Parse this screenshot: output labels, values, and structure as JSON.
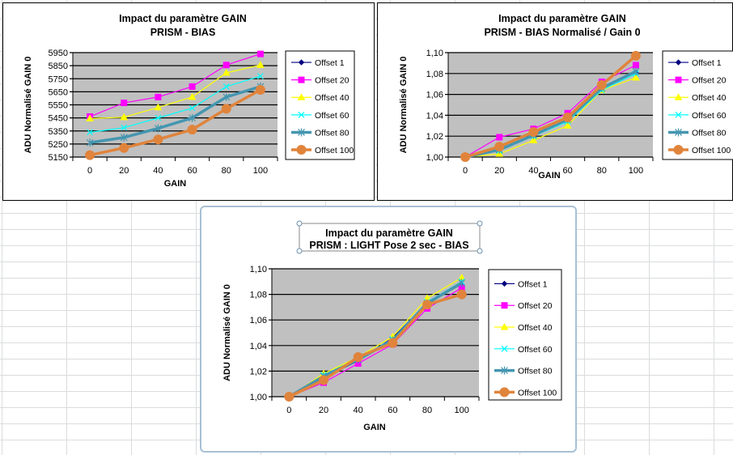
{
  "colors": {
    "plot_bg": "#c0c0c0",
    "offset1": "#000080",
    "offset20": "#ff00ff",
    "offset40": "#ffff00",
    "offset60": "#00ffff",
    "offset80": "#4596b0",
    "offset100": "#e0843c"
  },
  "chart_data": [
    {
      "type": "line",
      "title": [
        "Impact du paramètre  GAIN",
        "PRISM - BIAS"
      ],
      "xlabel": "GAIN",
      "ylabel": "ADU Normalisé GAIN 0",
      "categories": [
        "0",
        "20",
        "40",
        "60",
        "80",
        "100"
      ],
      "ylim": [
        5150,
        5950
      ],
      "yticks": [
        "5150",
        "5250",
        "5350",
        "5450",
        "5550",
        "5650",
        "5750",
        "5850",
        "5950"
      ],
      "grid": true,
      "legend": "right",
      "series": [
        {
          "name": "Offset 1",
          "marker": "diamond",
          "values": [
            null,
            null,
            null,
            null,
            null,
            null
          ]
        },
        {
          "name": "Offset 20",
          "marker": "square",
          "values": [
            5460,
            5565,
            5610,
            5690,
            5855,
            5940
          ]
        },
        {
          "name": "Offset 40",
          "marker": "triangle",
          "values": [
            5445,
            5455,
            5530,
            5610,
            5795,
            5855
          ]
        },
        {
          "name": "Offset 60",
          "marker": "x",
          "values": [
            5340,
            5375,
            5450,
            5525,
            5690,
            5770
          ]
        },
        {
          "name": "Offset 80",
          "marker": "star",
          "values": [
            5260,
            5300,
            5370,
            5450,
            5610,
            5690
          ]
        },
        {
          "name": "Offset 100",
          "marker": "circle",
          "values": [
            5165,
            5220,
            5285,
            5360,
            5520,
            5665
          ]
        }
      ]
    },
    {
      "type": "line",
      "title": [
        "Impact du paramètre  GAIN",
        "PRISM - BIAS Normalisé / Gain 0"
      ],
      "xlabel": "GAIN",
      "ylabel": "ADU Normalisé GAIN 0",
      "categories": [
        "0",
        "20",
        "40",
        "60",
        "80",
        "100"
      ],
      "ylim": [
        1.0,
        1.1
      ],
      "yticks": [
        "1,00",
        "1,02",
        "1,04",
        "1,06",
        "1,08",
        "1,10"
      ],
      "grid": true,
      "legend": "right",
      "series": [
        {
          "name": "Offset 1",
          "marker": "diamond",
          "values": [
            1.0,
            1.007,
            1.021,
            1.036,
            1.066,
            1.081
          ]
        },
        {
          "name": "Offset 20",
          "marker": "square",
          "values": [
            1.0,
            1.019,
            1.027,
            1.042,
            1.072,
            1.088
          ]
        },
        {
          "name": "Offset 40",
          "marker": "triangle",
          "values": [
            1.0,
            1.003,
            1.016,
            1.03,
            1.064,
            1.076
          ]
        },
        {
          "name": "Offset 60",
          "marker": "x",
          "values": [
            1.0,
            1.006,
            1.02,
            1.034,
            1.064,
            1.08
          ]
        },
        {
          "name": "Offset 80",
          "marker": "star",
          "values": [
            1.0,
            1.007,
            1.021,
            1.036,
            1.066,
            1.082
          ]
        },
        {
          "name": "Offset 100",
          "marker": "circle",
          "values": [
            1.0,
            1.01,
            1.024,
            1.038,
            1.069,
            1.097
          ]
        }
      ]
    },
    {
      "type": "line",
      "title": [
        "Impact du paramètre  GAIN",
        "PRISM :  LIGHT Pose 2 sec - BIAS"
      ],
      "xlabel": "GAIN",
      "ylabel": "ADU Normalisé GAIN 0",
      "categories": [
        "0",
        "20",
        "40",
        "60",
        "80",
        "100"
      ],
      "ylim": [
        1.0,
        1.1
      ],
      "yticks": [
        "1,00",
        "1,02",
        "1,04",
        "1,06",
        "1,08",
        "1,10"
      ],
      "grid": true,
      "legend": "right",
      "series": [
        {
          "name": "Offset 1",
          "marker": "diamond",
          "values": [
            1.0,
            1.015,
            1.028,
            1.046,
            1.073,
            1.088
          ]
        },
        {
          "name": "Offset 20",
          "marker": "square",
          "values": [
            1.0,
            1.011,
            1.026,
            1.041,
            1.069,
            1.085
          ]
        },
        {
          "name": "Offset 40",
          "marker": "triangle",
          "values": [
            1.0,
            1.018,
            1.031,
            1.047,
            1.077,
            1.093
          ]
        },
        {
          "name": "Offset 60",
          "marker": "x",
          "values": [
            1.0,
            1.017,
            1.03,
            1.045,
            1.074,
            1.09
          ]
        },
        {
          "name": "Offset 80",
          "marker": "star",
          "values": [
            1.0,
            1.016,
            1.029,
            1.044,
            1.073,
            1.089
          ]
        },
        {
          "name": "Offset 100",
          "marker": "circle",
          "values": [
            1.0,
            1.013,
            1.031,
            1.042,
            1.072,
            1.08
          ]
        }
      ]
    }
  ]
}
